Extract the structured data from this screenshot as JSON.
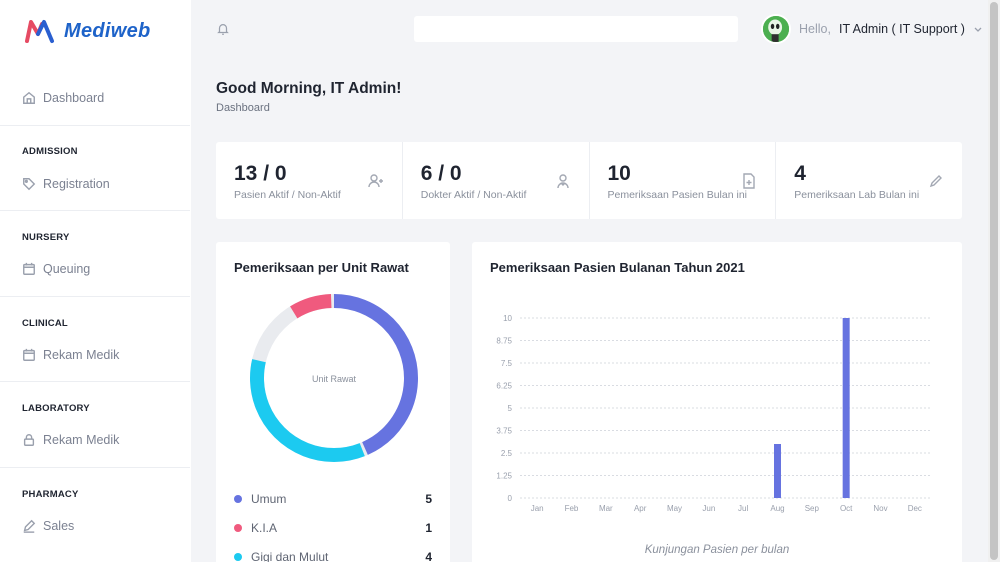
{
  "brand": {
    "name": "Mediweb"
  },
  "sidebar": {
    "dashboard": "Dashboard",
    "sections": [
      {
        "title": "ADMISSION",
        "item": "Registration"
      },
      {
        "title": "NURSERY",
        "item": "Queuing"
      },
      {
        "title": "CLINICAL",
        "item": "Rekam Medik"
      },
      {
        "title": "LABORATORY",
        "item": "Rekam Medik"
      },
      {
        "title": "PHARMACY",
        "item": "Sales"
      }
    ]
  },
  "topbar": {
    "search_value": "",
    "hello": "Hello,",
    "user_name": "IT Admin ( IT Support )"
  },
  "page": {
    "greeting": "Good Morning, IT Admin!",
    "breadcrumb": "Dashboard"
  },
  "stats": [
    {
      "value": "13 / 0",
      "label": "Pasien Aktif / Non-Aktif",
      "icon": "user-plus-icon"
    },
    {
      "value": "6 / 0",
      "label": "Dokter Aktif / Non-Aktif",
      "icon": "doctor-icon"
    },
    {
      "value": "10",
      "label": "Pemeriksaan Pasien Bulan ini",
      "icon": "file-plus-icon"
    },
    {
      "value": "4",
      "label": "Pemeriksaan Lab Bulan ini",
      "icon": "pencil-icon"
    }
  ],
  "donut": {
    "title": "Pemeriksaan per Unit Rawat",
    "center_label": "Unit Rawat",
    "colors": {
      "umum": "#6673e0",
      "kia": "#f05a7e",
      "gigi": "#1ccaf0",
      "empty": "#e9ebef"
    },
    "legend": [
      {
        "label": "Umum",
        "value": "5",
        "color": "#6673e0"
      },
      {
        "label": "K.I.A",
        "value": "1",
        "color": "#f05a7e"
      },
      {
        "label": "Gigi dan Mulut",
        "value": "4",
        "color": "#1ccaf0"
      }
    ]
  },
  "chart_data": {
    "type": "bar",
    "title": "Pemeriksaan Pasien Bulanan Tahun 2021",
    "xlabel": "Kunjungan Pasien per bulan",
    "ylabel": "",
    "categories": [
      "Jan",
      "Feb",
      "Mar",
      "Apr",
      "May",
      "Jun",
      "Jul",
      "Aug",
      "Sep",
      "Oct",
      "Nov",
      "Dec"
    ],
    "values": [
      0,
      0,
      0,
      0,
      0,
      0,
      0,
      3,
      0,
      10,
      0,
      0
    ],
    "ylim": [
      0,
      10
    ],
    "yticks": [
      "0",
      "1.25",
      "2.5",
      "3.75",
      "5",
      "6.25",
      "7.5",
      "8.75",
      "10"
    ],
    "bar_color": "#6673e0",
    "grid": true
  }
}
